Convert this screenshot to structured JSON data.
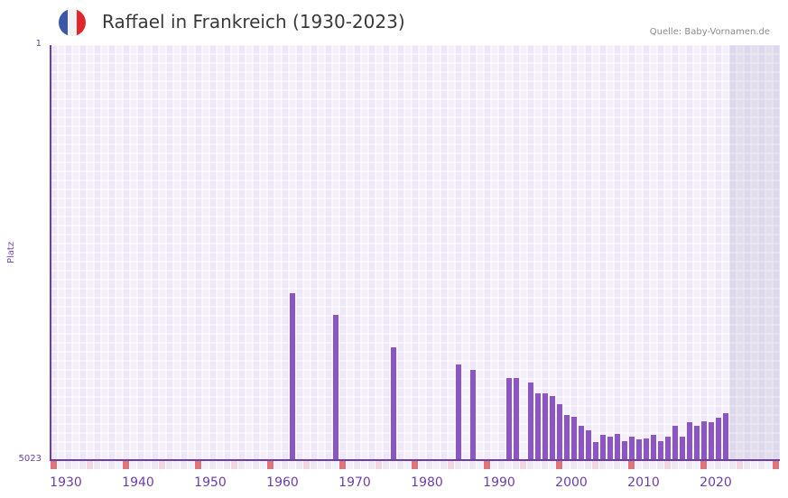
{
  "header": {
    "title": "Raffael in Frankreich (1930-2023)",
    "source": "Quelle: Baby-Vornamen.de",
    "flag_colors": [
      "#3b58a8",
      "#f2f2f2",
      "#e0262b"
    ]
  },
  "colors": {
    "bar": "#8c55c8",
    "axis": "#6a3fa8",
    "cell_a": "#ede7f8",
    "cell_b": "#f3effb",
    "grid_line": "#ffffff",
    "marker_decade": "#e2737b",
    "marker_half": "#f5d5dc",
    "shade": "#e4e0ec"
  },
  "chart_data": {
    "type": "bar",
    "title": "Raffael in Frankreich (1930-2023)",
    "xlabel": "",
    "ylabel": "Platz",
    "y_axis_inverted": true,
    "ylim": [
      1,
      5023
    ],
    "y_ticks": [
      "1",
      "5023"
    ],
    "x_range": [
      1928,
      2028
    ],
    "x_ticks": [
      "1930",
      "1940",
      "1950",
      "1960",
      "1970",
      "1980",
      "1990",
      "2000",
      "2010",
      "2020"
    ],
    "shaded_from_year": 2022,
    "grid": true,
    "legend": null,
    "categories": [
      1961,
      1967,
      1975,
      1984,
      1986,
      1991,
      1992,
      1994,
      1995,
      1996,
      1997,
      1998,
      1999,
      2000,
      2001,
      2002,
      2003,
      2004,
      2005,
      2006,
      2007,
      2008,
      2009,
      2010,
      2011,
      2012,
      2013,
      2014,
      2015,
      2016,
      2017,
      2018,
      2019,
      2020,
      2021
    ],
    "series": [
      {
        "name": "Platz",
        "values": [
          3003,
          3265,
          3658,
          3866,
          3931,
          4029,
          4029,
          4084,
          4215,
          4215,
          4248,
          4346,
          4477,
          4499,
          4608,
          4663,
          4805,
          4717,
          4739,
          4706,
          4794,
          4739,
          4772,
          4761,
          4717,
          4794,
          4739,
          4608,
          4739,
          4564,
          4608,
          4553,
          4564,
          4510,
          4455
        ]
      }
    ]
  }
}
